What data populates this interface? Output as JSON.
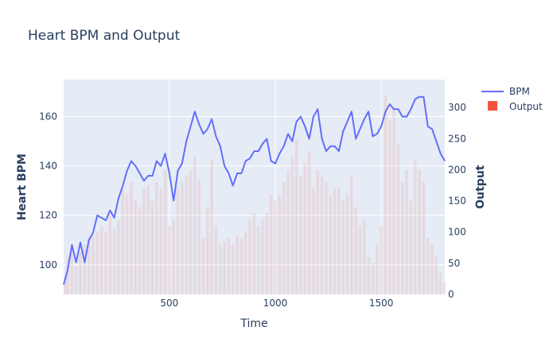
{
  "chart_data": {
    "type": "line",
    "title": "Heart BPM and Output",
    "xlabel": "Time",
    "ylabel_left": "Heart BPM",
    "ylabel_right": "Output",
    "xlim": [
      1,
      1800
    ],
    "ylim_left": [
      88,
      175
    ],
    "ylim_right": [
      0,
      345
    ],
    "x_ticks": [
      500,
      1000,
      1500
    ],
    "y_left_ticks": [
      100,
      120,
      140,
      160
    ],
    "y_right_ticks": [
      0,
      50,
      100,
      150,
      200,
      250,
      300
    ],
    "grid": true,
    "legend_position": "top-right",
    "colors": {
      "bpm": "#636efa",
      "output": "#ef553b",
      "plot_bg": "#e5ecf6",
      "grid": "#ffffff",
      "text": "#2a3f5f"
    },
    "series": [
      {
        "name": "BPM",
        "type": "line",
        "axis": "left",
        "x": [
          1,
          20,
          40,
          60,
          80,
          100,
          120,
          140,
          160,
          180,
          200,
          220,
          240,
          260,
          280,
          300,
          320,
          340,
          360,
          380,
          400,
          420,
          440,
          460,
          480,
          500,
          520,
          540,
          560,
          580,
          600,
          620,
          640,
          660,
          680,
          700,
          720,
          740,
          760,
          780,
          800,
          820,
          840,
          860,
          880,
          900,
          920,
          940,
          960,
          980,
          1000,
          1020,
          1040,
          1060,
          1080,
          1100,
          1120,
          1140,
          1160,
          1180,
          1200,
          1220,
          1240,
          1260,
          1280,
          1300,
          1320,
          1340,
          1360,
          1380,
          1400,
          1420,
          1440,
          1460,
          1480,
          1500,
          1520,
          1540,
          1560,
          1580,
          1600,
          1620,
          1640,
          1660,
          1680,
          1700,
          1720,
          1740,
          1760,
          1780,
          1800
        ],
        "y": [
          92,
          98,
          108,
          101,
          109,
          101,
          110,
          113,
          120,
          119,
          118,
          122,
          119,
          127,
          132,
          138,
          142,
          140,
          137,
          134,
          136,
          136,
          142,
          140,
          145,
          137,
          126,
          138,
          141,
          150,
          156,
          162,
          157,
          153,
          155,
          159,
          152,
          148,
          140,
          137,
          132,
          137,
          137,
          142,
          143,
          146,
          146,
          149,
          151,
          142,
          141,
          145,
          148,
          153,
          150,
          158,
          160,
          156,
          151,
          160,
          163,
          151,
          146,
          148,
          148,
          146,
          154,
          158,
          162,
          151,
          155,
          159,
          162,
          152,
          153,
          156,
          162,
          165,
          163,
          163,
          160,
          160,
          163,
          167,
          168,
          168,
          156,
          155,
          150,
          145,
          142
        ]
      },
      {
        "name": "Output",
        "type": "bar",
        "axis": "right",
        "x": [
          1,
          20,
          40,
          60,
          80,
          100,
          120,
          140,
          160,
          180,
          200,
          220,
          240,
          260,
          280,
          300,
          320,
          340,
          360,
          380,
          400,
          420,
          440,
          460,
          480,
          500,
          520,
          540,
          560,
          580,
          600,
          620,
          640,
          660,
          680,
          700,
          720,
          740,
          760,
          780,
          800,
          820,
          840,
          860,
          880,
          900,
          920,
          940,
          960,
          980,
          1000,
          1020,
          1040,
          1060,
          1080,
          1100,
          1120,
          1140,
          1160,
          1180,
          1200,
          1220,
          1240,
          1260,
          1280,
          1300,
          1320,
          1340,
          1360,
          1380,
          1400,
          1420,
          1440,
          1460,
          1480,
          1500,
          1520,
          1540,
          1560,
          1580,
          1600,
          1620,
          1640,
          1660,
          1680,
          1700,
          1720,
          1740,
          1760,
          1780,
          1800
        ],
        "y": [
          20,
          60,
          75,
          45,
          70,
          80,
          90,
          95,
          100,
          110,
          100,
          130,
          105,
          120,
          170,
          160,
          180,
          150,
          140,
          170,
          175,
          150,
          180,
          170,
          200,
          110,
          120,
          170,
          180,
          190,
          200,
          220,
          185,
          90,
          140,
          215,
          110,
          80,
          85,
          90,
          80,
          95,
          90,
          100,
          120,
          130,
          110,
          120,
          130,
          160,
          150,
          160,
          180,
          200,
          220,
          250,
          190,
          210,
          230,
          170,
          200,
          190,
          180,
          160,
          170,
          170,
          150,
          160,
          190,
          140,
          110,
          120,
          60,
          50,
          80,
          110,
          320,
          280,
          300,
          240,
          180,
          200,
          150,
          215,
          200,
          180,
          90,
          80,
          60,
          35,
          20
        ]
      }
    ]
  }
}
